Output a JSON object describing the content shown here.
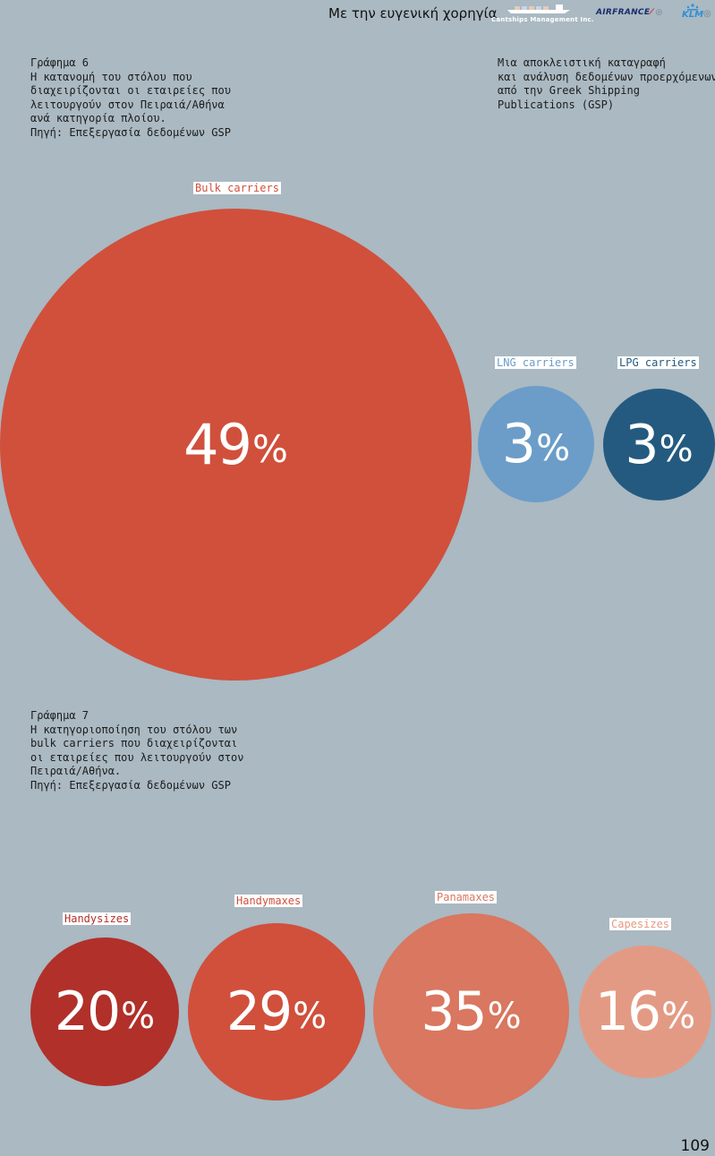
{
  "header": {
    "sponsor_text": "Με την ευγενική χορηγία",
    "logos": {
      "ship_company": "Cantships Management Inc.",
      "airfrance": "AIRFRANCE",
      "klm": "KLM"
    }
  },
  "chart6": {
    "caption_lines": [
      "Γράφημα 6",
      "Η κατανομή του στόλου που",
      "διαχειρίζονται οι εταιρείες που",
      "λειτουργούν στον Πειραιά/Αθήνα",
      "ανά κατηγορία πλοίου.",
      "Πηγή: Επεξεργασία δεδομένων GSP"
    ]
  },
  "note_lines": [
    "Μια αποκλειστική καταγραφή",
    "και ανάλυση δεδομένων προερχόμενων",
    "από την Greek Shipping",
    "Publications (GSP)"
  ],
  "chart7": {
    "caption_lines": [
      "Γράφημα 7",
      "Η κατηγοριοποίηση του στόλου των",
      "bulk carriers που διαχειρίζονται",
      "οι εταιρείες που λειτουργούν στον",
      "Πειραιά/Αθήνα.",
      "Πηγή: Επεξεργασία δεδομένων GSP"
    ]
  },
  "chart_data": [
    {
      "type": "bubble",
      "categories": [
        "Bulk carriers",
        "LNG carriers",
        "LPG carriers"
      ],
      "values": [
        49,
        3,
        3
      ],
      "value_labels": [
        "49",
        "3",
        "3"
      ],
      "unit": "%",
      "colors": [
        "#d0503c",
        "#6b9dc8",
        "#245a80"
      ]
    },
    {
      "type": "bubble",
      "categories": [
        "Handysizes",
        "Handymaxes",
        "Panamaxes",
        "Capesizes"
      ],
      "values": [
        20,
        29,
        35,
        16
      ],
      "value_labels": [
        "20",
        "29",
        "35",
        "16"
      ],
      "unit": "%",
      "colors": [
        "#b1302a",
        "#d0503c",
        "#d97760",
        "#e39a84"
      ]
    }
  ],
  "page_number": "109"
}
